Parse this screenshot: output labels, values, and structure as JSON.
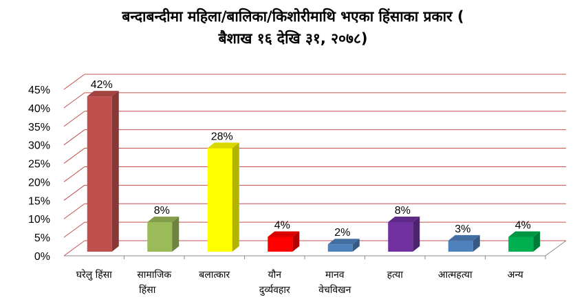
{
  "chart_data": {
    "type": "bar",
    "title_line1": "बन्दाबन्दीमा महिला/बालिका/किशोरीमाथि भएका हिंसाका प्रकार (",
    "title_line2": "बैशाख १६ देखि ३१, २०७८)",
    "categories": [
      [
        "घरेलु हिंसा"
      ],
      [
        "सामाजिक",
        "हिंसा"
      ],
      [
        "बलात्कार"
      ],
      [
        "यौन",
        "दुर्व्यवहार"
      ],
      [
        "मानव",
        "वेचविखन"
      ],
      [
        "हत्या"
      ],
      [
        "आत्महत्या"
      ],
      [
        "अन्य"
      ]
    ],
    "values": [
      42,
      8,
      28,
      4,
      2,
      8,
      3,
      4
    ],
    "data_labels": [
      "42%",
      "8%",
      "28%",
      "4%",
      "2%",
      "8%",
      "3%",
      "4%"
    ],
    "colors": [
      "#c0504d",
      "#9bbb59",
      "#ffff00",
      "#ff0000",
      "#4f81bd",
      "#7030a0",
      "#4f81bd",
      "#00b050"
    ],
    "y_ticks": [
      "0%",
      "5%",
      "10%",
      "15%",
      "20%",
      "25%",
      "30%",
      "35%",
      "40%",
      "45%"
    ],
    "ylim": [
      0,
      45
    ],
    "grid": true,
    "gridline_color": "#c0504d",
    "xlabel": "",
    "ylabel": ""
  }
}
